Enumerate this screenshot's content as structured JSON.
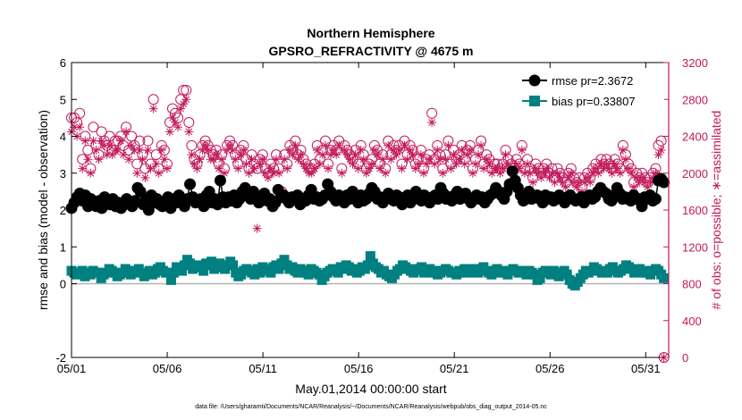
{
  "chart_data": {
    "type": "line",
    "title_line1": "Northern Hemisphere",
    "title_line2": "GPSRO_REFRACTIVITY @ 4675 m",
    "xlabel": "May.01,2014 00:00:00 start",
    "ylabel_left": "rmse and bias (model - observation)",
    "ylabel_right": "# of obs: o=possible; ∗=assimilated",
    "x_tick_labels": [
      "05/01",
      "05/06",
      "05/11",
      "05/16",
      "05/21",
      "05/26",
      "05/31"
    ],
    "x_tick_days": [
      1,
      6,
      11,
      16,
      21,
      26,
      31
    ],
    "xlim_days": [
      1,
      32.2
    ],
    "ylim_left": [
      -2,
      6
    ],
    "y_ticks_left": [
      "-2",
      "0",
      "1",
      "2",
      "3",
      "4",
      "5",
      "6"
    ],
    "y_ticks_left_values": [
      -2,
      0,
      1,
      2,
      3,
      4,
      5,
      6
    ],
    "ylim_right": [
      0,
      3200
    ],
    "y_ticks_right": [
      "0",
      "400",
      "800",
      "1200",
      "1600",
      "2000",
      "2400",
      "2800",
      "3200"
    ],
    "y_ticks_right_values": [
      0,
      400,
      800,
      1200,
      1600,
      2000,
      2400,
      2800,
      3200
    ],
    "zero_line": 0,
    "footnote": "data file: /Users/gharamti/Documents/NCAR/Reanalysis/~/Documents/NCAR/Reanalysis/webpub/obs_diag_output_2014-05.nc",
    "colors": {
      "rmse": "#000000",
      "bias": "#008080",
      "obs": "#c2185b",
      "zero": "#b3b3b3"
    },
    "series": [
      {
        "name": "rmse pr=2.3672",
        "marker": "circle",
        "values": [
          2.05,
          2.2,
          2.35,
          2.45,
          2.25,
          2.4,
          2.1,
          2.3,
          2.2,
          2.1,
          2.25,
          2.05,
          2.35,
          2.2,
          2.15,
          2.3,
          2.1,
          2.2,
          2.05,
          2.15,
          2.3,
          2.2,
          2.1,
          2.25,
          2.6,
          2.5,
          2.15,
          2.3,
          2.0,
          2.4,
          2.2,
          2.3,
          2.15,
          2.1,
          2.2,
          2.35,
          2.05,
          2.3,
          2.2,
          2.4,
          2.25,
          2.1,
          2.3,
          2.7,
          2.35,
          2.2,
          2.25,
          2.3,
          2.1,
          2.4,
          2.5,
          2.2,
          2.3,
          2.15,
          2.8,
          2.35,
          2.2,
          2.35,
          2.25,
          2.4,
          2.2,
          2.3,
          2.5,
          2.6,
          2.4,
          2.3,
          2.5,
          2.35,
          2.2,
          2.3,
          2.45,
          2.25,
          2.3,
          2.1,
          2.2,
          2.55,
          2.35,
          2.4,
          2.3,
          2.2,
          2.35,
          2.3,
          2.4,
          2.15,
          2.3,
          2.25,
          2.4,
          2.55,
          2.3,
          2.35,
          2.25,
          2.3,
          2.4,
          2.7,
          2.5,
          2.35,
          2.25,
          2.4,
          2.3,
          2.2,
          2.4,
          2.3,
          2.5,
          2.35,
          2.2,
          2.4,
          2.25,
          2.3,
          2.45,
          2.6,
          2.5,
          2.3,
          2.35,
          2.2,
          2.3,
          2.45,
          2.3,
          2.25,
          2.4,
          2.35,
          2.15,
          2.3,
          2.4,
          2.2,
          2.35,
          2.5,
          2.3,
          2.25,
          2.4,
          2.3,
          2.2,
          2.35,
          2.4,
          2.3,
          2.6,
          2.45,
          2.3,
          2.35,
          2.25,
          2.4,
          2.5,
          2.3,
          2.35,
          2.45,
          2.3,
          2.2,
          2.3,
          2.4,
          2.3,
          2.35,
          2.2,
          2.3,
          2.4,
          2.45,
          2.6,
          2.5,
          2.4,
          2.3,
          2.5,
          2.7,
          3.05,
          2.8,
          2.6,
          2.4,
          2.25,
          2.3,
          2.5,
          2.3,
          2.35,
          2.4,
          2.3,
          2.2,
          2.4,
          2.3,
          2.35,
          2.25,
          2.3,
          2.4,
          2.3,
          2.2,
          2.35,
          2.4,
          2.3,
          2.25,
          2.3,
          2.35,
          2.2,
          2.3,
          2.4,
          2.3,
          2.35,
          2.5,
          2.6,
          2.5,
          2.45,
          2.3,
          2.25,
          2.4,
          2.6,
          2.45,
          2.3,
          2.35,
          2.3,
          2.25,
          2.4,
          2.3,
          2.3,
          2.1,
          2.35,
          2.3,
          2.4,
          2.25,
          2.3,
          2.8,
          2.85,
          2.75
        ]
      },
      {
        "name": "bias pr=0.33807",
        "marker": "square",
        "values": [
          0.35,
          0.3,
          0.25,
          0.3,
          0.35,
          0.2,
          0.3,
          0.25,
          0.35,
          0.3,
          0.3,
          0.15,
          0.25,
          0.3,
          0.4,
          0.35,
          0.3,
          0.2,
          0.25,
          0.3,
          0.4,
          0.35,
          0.25,
          0.3,
          0.35,
          0.4,
          0.3,
          0.2,
          0.3,
          0.35,
          0.25,
          0.3,
          0.4,
          0.45,
          0.35,
          0.3,
          0.3,
          0.1,
          0.3,
          0.45,
          0.4,
          0.35,
          0.5,
          0.65,
          0.55,
          0.4,
          0.45,
          0.5,
          0.45,
          0.35,
          0.55,
          0.5,
          0.6,
          0.4,
          0.5,
          0.55,
          0.45,
          0.4,
          0.5,
          0.6,
          0.5,
          0.3,
          0.2,
          0.25,
          0.35,
          0.4,
          0.35,
          0.3,
          0.25,
          0.4,
          0.3,
          0.45,
          0.4,
          0.35,
          0.3,
          0.45,
          0.5,
          0.4,
          0.55,
          0.65,
          0.5,
          0.4,
          0.45,
          0.35,
          0.3,
          0.4,
          0.35,
          0.3,
          0.25,
          0.4,
          0.35,
          0.3,
          0.25,
          0.1,
          0.2,
          0.3,
          0.35,
          0.4,
          0.35,
          0.3,
          0.45,
          0.4,
          0.5,
          0.45,
          0.35,
          0.4,
          0.3,
          0.35,
          0.45,
          0.4,
          0.5,
          0.75,
          0.55,
          0.45,
          0.4,
          0.3,
          0.35,
          0.25,
          0.2,
          0.15,
          0.25,
          0.35,
          0.4,
          0.5,
          0.45,
          0.4,
          0.35,
          0.3,
          0.4,
          0.35,
          0.45,
          0.3,
          0.35,
          0.4,
          0.3,
          0.35,
          0.25,
          0.3,
          0.35,
          0.4,
          0.35,
          0.3,
          0.3,
          0.25,
          0.35,
          0.3,
          0.4,
          0.35,
          0.3,
          0.4,
          0.35,
          0.3,
          0.4,
          0.45,
          0.35,
          0.3,
          0.25,
          0.35,
          0.4,
          0.3,
          0.35,
          0.3,
          0.25,
          0.35,
          0.4,
          0.35,
          0.3,
          0.35,
          0.3,
          0.25,
          0.35,
          0.3,
          0.25,
          0.1,
          0.15,
          0.3,
          0.35,
          0.3,
          0.25,
          0.35,
          0.3,
          0.2,
          0.3,
          0.35,
          0.25,
          0.1,
          0.0,
          -0.05,
          0.05,
          0.15,
          0.25,
          0.35,
          0.3,
          0.35,
          0.45,
          0.4,
          0.35,
          0.3,
          0.35,
          0.3,
          0.4,
          0.45,
          0.35,
          0.3,
          0.35,
          0.4,
          0.5,
          0.45,
          0.4,
          0.3,
          0.35,
          0.4,
          0.3,
          0.35,
          0.3,
          0.25,
          0.35,
          0.4,
          0.35,
          0.25,
          0.15
        ]
      }
    ],
    "obs_possible": [
      2600,
      2600,
      2550,
      2650,
      2150,
      2400,
      2250,
      2050,
      2500,
      2300,
      2200,
      2450,
      2350,
      2300,
      2400,
      2250,
      2350,
      2350,
      2400,
      2300,
      2500,
      2250,
      2400,
      2300,
      2100,
      2350,
      2200,
      2050,
      2350,
      2100,
      2800,
      2200,
      2050,
      2300,
      2250,
      2100,
      2550,
      2700,
      2650,
      2600,
      2800,
      2900,
      2900,
      2550,
      2300,
      2150,
      2100,
      2200,
      2300,
      2350,
      2300,
      2250,
      2200,
      2250,
      2100,
      2200,
      2050,
      2300,
      2350,
      2300,
      2200,
      2100,
      2250,
      2300,
      2150,
      2050,
      2200,
      2100,
      2050,
      2150,
      2200,
      2050,
      2000,
      2100,
      2050,
      2200,
      2050,
      1800,
      2200,
      2100,
      2300,
      2250,
      2350,
      2200,
      2250,
      2150,
      2100,
      2050,
      2050,
      2100,
      2300,
      2150,
      2250,
      2350,
      2100,
      2250,
      2300,
      2250,
      2350,
      2050,
      2300,
      2250,
      2200,
      2150,
      2250,
      2100,
      2300,
      2200,
      2050,
      2100,
      2150,
      2300,
      2250,
      2100,
      2200,
      2050,
      2350,
      2200,
      2300,
      2250,
      2300,
      2100,
      2350,
      2200,
      2300,
      2250,
      2100,
      2150,
      2250,
      2050,
      2150,
      2200,
      2650,
      2150,
      2300,
      2200,
      2050,
      2200,
      2350,
      2100,
      2250,
      2150,
      2200,
      2300,
      2150,
      2250,
      2300,
      2050,
      2150,
      2250,
      2350,
      2100,
      2200,
      2150,
      2050,
      2100,
      2100,
      2050,
      2100,
      2250,
      2150,
      2100,
      2050,
      2150,
      2100,
      2300,
      2050,
      2150,
      2050,
      1950,
      2100,
      2050,
      2000,
      2050,
      2100,
      2000,
      2050,
      1950,
      2050,
      2000,
      1950,
      1900,
      2000,
      2050,
      1950,
      1900,
      1950,
      1850,
      1950,
      2000,
      1950,
      2050,
      2100,
      2050,
      2150,
      2100,
      2150,
      2100,
      2050,
      2150,
      2100,
      2050,
      2300,
      2200,
      2100,
      2050,
      1900,
      2000,
      1950,
      2000,
      1950,
      1900,
      1950,
      2000,
      2050,
      2300,
      2350,
      0
    ],
    "obs_assimilated": [
      2450,
      2500,
      2400,
      2500,
      2050,
      2350,
      2150,
      2000,
      2350,
      2250,
      2150,
      2350,
      2300,
      2200,
      2300,
      2200,
      2250,
      2250,
      2350,
      2200,
      2450,
      2150,
      2300,
      2250,
      2000,
      2250,
      2150,
      1950,
      2250,
      2050,
      2700,
      2100,
      2000,
      2250,
      2150,
      2050,
      2450,
      2600,
      2550,
      2500,
      2700,
      2750,
      2800,
      2450,
      2200,
      2100,
      2050,
      2150,
      2250,
      2300,
      2250,
      2150,
      2150,
      2200,
      2050,
      2150,
      2000,
      2250,
      2300,
      2250,
      2150,
      2050,
      2200,
      2250,
      2100,
      2000,
      2150,
      2050,
      1400,
      2100,
      2150,
      2000,
      1950,
      2050,
      2000,
      2150,
      2000,
      1750,
      2150,
      2050,
      2250,
      2200,
      2300,
      2150,
      2200,
      2100,
      2050,
      2000,
      2000,
      2050,
      2250,
      2100,
      2200,
      2300,
      2050,
      2200,
      2250,
      2200,
      2300,
      2000,
      2250,
      2200,
      2150,
      2100,
      2200,
      2050,
      2250,
      2150,
      2000,
      2050,
      2100,
      2250,
      2200,
      2050,
      2150,
      2000,
      2300,
      2150,
      2250,
      2200,
      2250,
      2050,
      2300,
      2150,
      2250,
      2200,
      2050,
      2100,
      2200,
      2000,
      2100,
      2150,
      2550,
      2100,
      2250,
      2150,
      2000,
      2150,
      2300,
      2050,
      2200,
      2100,
      2150,
      2250,
      2100,
      2200,
      2250,
      2000,
      2100,
      2200,
      2300,
      2050,
      2150,
      2100,
      2000,
      2050,
      2050,
      2000,
      2050,
      2200,
      2100,
      2050,
      2000,
      2100,
      2050,
      2250,
      2000,
      2100,
      2000,
      1900,
      2050,
      2000,
      1950,
      2000,
      2050,
      1950,
      2000,
      1900,
      2000,
      1950,
      1900,
      1850,
      1950,
      2000,
      1900,
      1850,
      1900,
      1800,
      1900,
      1950,
      1900,
      2000,
      2050,
      2000,
      2100,
      2050,
      2100,
      2050,
      2000,
      2100,
      2050,
      2000,
      2250,
      2150,
      2050,
      2000,
      1850,
      1950,
      1900,
      1950,
      1900,
      1850,
      1900,
      1950,
      2000,
      2200,
      2250,
      0
    ]
  }
}
